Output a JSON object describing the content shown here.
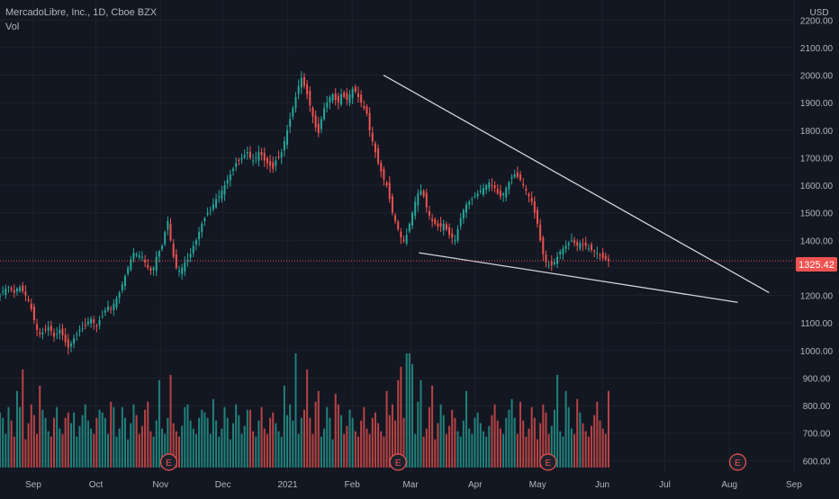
{
  "header": {
    "symbol": "MercadoLibre, Inc., 1D, Cboe BZX",
    "volume_label": "Vol",
    "currency": "USD"
  },
  "colors": {
    "background": "#131722",
    "grid": "#1e222d",
    "up": "#26a69a",
    "down": "#ef5350",
    "trendline": "#d1d4dc",
    "price_line": "#ef5350",
    "text": "#b2b5be"
  },
  "chart_data": {
    "type": "candlestick",
    "price_axis": {
      "ticks": [
        "2200.00",
        "2100.00",
        "2000.00",
        "1900.00",
        "1800.00",
        "1700.00",
        "1600.00",
        "1500.00",
        "1400.00",
        "1300.00",
        "1200.00",
        "1100.00",
        "1000.00",
        "900.00",
        "800.00",
        "700.00",
        "600.00"
      ],
      "range": [
        575,
        2240
      ]
    },
    "time_axis": {
      "ticks": [
        "Sep",
        "Oct",
        "Nov",
        "Dec",
        "2021",
        "Feb",
        "Mar",
        "Apr",
        "May",
        "Jun",
        "Jul",
        "Aug",
        "Sep"
      ],
      "tick_dates": [
        "2020-09-01",
        "2020-10-01",
        "2020-11-01",
        "2020-12-01",
        "2021-01-01",
        "2021-02-01",
        "2021-03-01",
        "2021-04-01",
        "2021-05-01",
        "2021-06-01",
        "2021-07-01",
        "2021-08-01",
        "2021-09-01"
      ],
      "range": [
        "2020-08-16",
        "2021-09-01"
      ]
    },
    "last_price": "1325.42",
    "closes": [
      1200,
      1215,
      1225,
      1230,
      1220,
      1210,
      1225,
      1230,
      1215,
      1200,
      1180,
      1150,
      1110,
      1075,
      1060,
      1065,
      1075,
      1085,
      1070,
      1050,
      1060,
      1075,
      1055,
      1030,
      1010,
      1025,
      1045,
      1060,
      1075,
      1080,
      1090,
      1105,
      1115,
      1100,
      1090,
      1110,
      1125,
      1145,
      1160,
      1150,
      1170,
      1190,
      1210,
      1240,
      1270,
      1300,
      1330,
      1355,
      1350,
      1345,
      1340,
      1320,
      1300,
      1290,
      1300,
      1340,
      1360,
      1380,
      1430,
      1470,
      1400,
      1340,
      1300,
      1290,
      1300,
      1320,
      1330,
      1350,
      1380,
      1400,
      1430,
      1460,
      1480,
      1500,
      1510,
      1530,
      1550,
      1560,
      1580,
      1600,
      1620,
      1640,
      1660,
      1680,
      1690,
      1700,
      1710,
      1720,
      1700,
      1690,
      1700,
      1720,
      1710,
      1690,
      1680,
      1670,
      1660,
      1690,
      1700,
      1720,
      1760,
      1800,
      1840,
      1880,
      1920,
      1960,
      1990,
      1960,
      1930,
      1890,
      1850,
      1810,
      1790,
      1840,
      1880,
      1900,
      1920,
      1930,
      1910,
      1900,
      1930,
      1920,
      1910,
      1930,
      1950,
      1940,
      1920,
      1900,
      1880,
      1860,
      1800,
      1760,
      1720,
      1680,
      1650,
      1620,
      1600,
      1550,
      1500,
      1470,
      1440,
      1410,
      1400,
      1420,
      1460,
      1500,
      1540,
      1570,
      1580,
      1560,
      1520,
      1490,
      1470,
      1460,
      1450,
      1450,
      1460,
      1440,
      1420,
      1410,
      1400,
      1440,
      1480,
      1510,
      1530,
      1540,
      1550,
      1560,
      1570,
      1580,
      1590,
      1600,
      1610,
      1600,
      1590,
      1570,
      1560,
      1570,
      1590,
      1610,
      1630,
      1640,
      1630,
      1620,
      1600,
      1580,
      1560,
      1540,
      1500,
      1460,
      1400,
      1350,
      1320,
      1310,
      1310,
      1320,
      1340,
      1360,
      1370,
      1380,
      1390,
      1400,
      1390,
      1380,
      1390,
      1385,
      1380,
      1370,
      1365,
      1360,
      1355,
      1345,
      1335,
      1330,
      1325.42
    ],
    "volume_axis": {
      "range": [
        575,
        1010
      ]
    },
    "volume_pattern": [
      780,
      760,
      700,
      820,
      750,
      690,
      720,
      800,
      760,
      680,
      740,
      810,
      770,
      700,
      730,
      790,
      760,
      710,
      690,
      750,
      800,
      720,
      700,
      760,
      780,
      740,
      710,
      690,
      730,
      770,
      810,
      750,
      720,
      700,
      760,
      790
    ],
    "volume_spikes": [
      [
        3,
        800
      ],
      [
        6,
        860
      ],
      [
        8,
        940
      ],
      [
        14,
        880
      ],
      [
        19,
        760
      ],
      [
        26,
        780
      ],
      [
        40,
        800
      ],
      [
        52,
        820
      ],
      [
        56,
        900
      ],
      [
        60,
        920
      ],
      [
        65,
        800
      ],
      [
        75,
        830
      ],
      [
        88,
        790
      ],
      [
        95,
        760
      ],
      [
        100,
        880
      ],
      [
        104,
        1000
      ],
      [
        108,
        940
      ],
      [
        112,
        860
      ],
      [
        118,
        850
      ],
      [
        128,
        800
      ],
      [
        136,
        860
      ],
      [
        140,
        900
      ],
      [
        141,
        950
      ],
      [
        143,
        1000
      ],
      [
        144,
        1000
      ],
      [
        145,
        960
      ],
      [
        148,
        900
      ],
      [
        152,
        880
      ],
      [
        164,
        860
      ],
      [
        180,
        830
      ],
      [
        192,
        780
      ],
      [
        196,
        920
      ],
      [
        199,
        860
      ],
      [
        203,
        830
      ],
      [
        210,
        820
      ],
      [
        214,
        860
      ],
      [
        219,
        880
      ]
    ],
    "earnings_markers": [
      "E",
      "E",
      "E",
      "E"
    ],
    "earnings_dates": [
      "2020-11-05",
      "2021-02-23",
      "2021-05-06",
      "2021-08-05"
    ],
    "trendlines": [
      {
        "from": [
          "2021-02-16",
          2000
        ],
        "to": [
          "2021-08-20",
          1210
        ]
      },
      {
        "from": [
          "2021-03-05",
          1355
        ],
        "to": [
          "2021-08-05",
          1175
        ]
      }
    ]
  }
}
